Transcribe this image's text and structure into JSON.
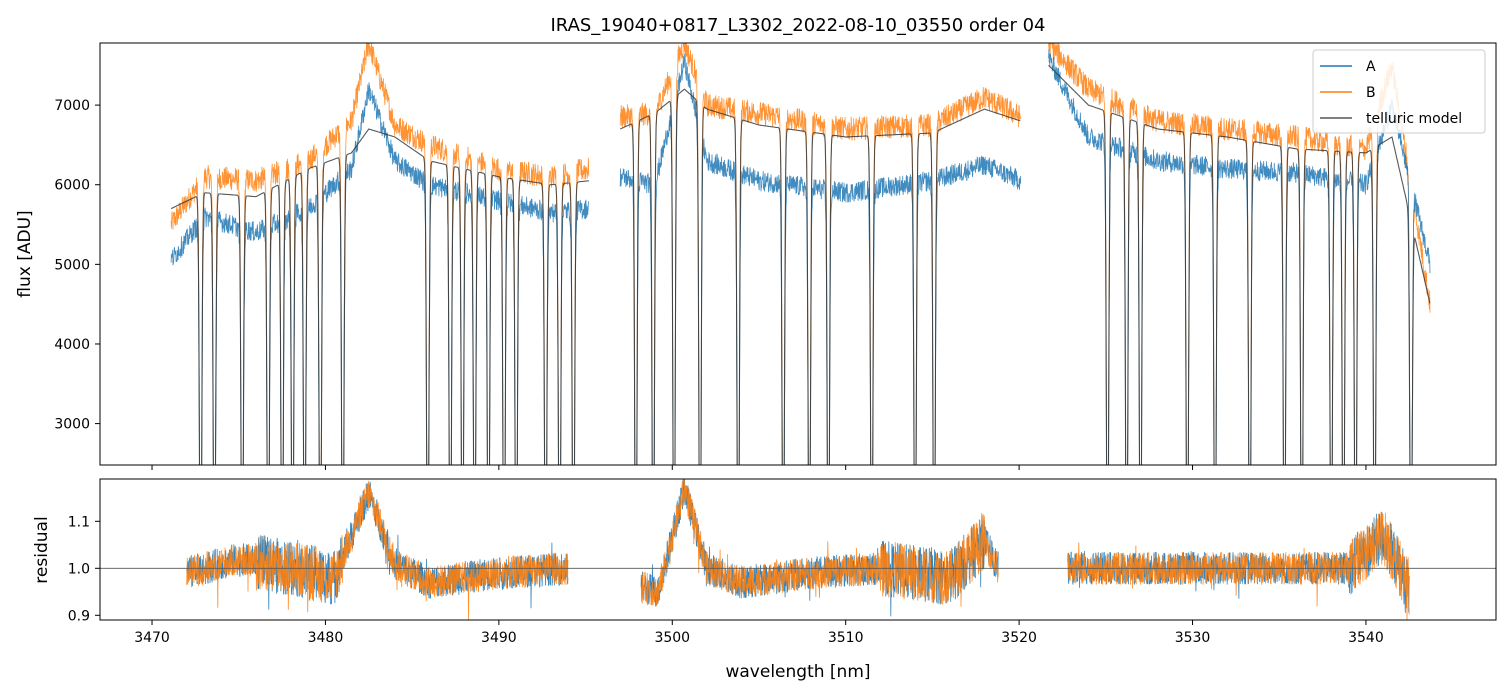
{
  "chart_data": {
    "type": "line",
    "title": "IRAS_19040+0817_L3302_2022-08-10_03550  order 04",
    "xlabel": "wavelength [nm]",
    "xlim": [
      3467,
      3547.5
    ],
    "xticks": [
      3470,
      3480,
      3490,
      3500,
      3510,
      3520,
      3530,
      3540
    ],
    "xtick_labels": [
      "3470",
      "3480",
      "3490",
      "3500",
      "3510",
      "3520",
      "3530",
      "3540"
    ],
    "colors": {
      "A": "#1f77b4",
      "B": "#ff7f0e",
      "model": "#3a3a3a",
      "ref": "#555555"
    },
    "panels": [
      {
        "name": "flux",
        "ylabel": "flux [ADU]",
        "ylim": [
          2480,
          7780
        ],
        "yticks": [
          3000,
          4000,
          5000,
          6000,
          7000
        ],
        "ytick_labels": [
          "3000",
          "4000",
          "5000",
          "6000",
          "7000"
        ],
        "legend": {
          "placement": "top-right",
          "entries": [
            "A",
            "B",
            "telluric model"
          ]
        },
        "segments": [
          [
            3471.1,
            3495.2
          ],
          [
            3497.0,
            3520.1
          ],
          [
            3521.7,
            3543.7
          ]
        ],
        "series": [
          {
            "name": "A",
            "key": "A",
            "x": [
              3471.1,
              3473,
              3476,
              3479,
              3481.5,
              3482.5,
              3484,
              3486,
              3490,
              3493,
              3495.2,
              3497.0,
              3499,
              3500.7,
              3502,
              3505,
              3510,
              3515,
              3518,
              3520.1,
              3521.7,
              3524,
              3528,
              3532,
              3536,
              3540,
              3541.5,
              3543.7
            ],
            "y": [
              5050,
              5600,
              5400,
              5700,
              6200,
              7200,
              6300,
              6000,
              5800,
              5650,
              5700,
              6100,
              6000,
              7550,
              6300,
              6050,
              5900,
              6050,
              6250,
              6050,
              7600,
              6600,
              6300,
              6200,
              6150,
              6000,
              7000,
              5000
            ]
          },
          {
            "name": "B",
            "key": "B",
            "x": [
              3471.1,
              3473,
              3476,
              3479,
              3481.5,
              3482.5,
              3484,
              3486,
              3490,
              3493,
              3495.2,
              3497.0,
              3499,
              3500.7,
              3502,
              3505,
              3510,
              3515,
              3518,
              3520.1,
              3521.7,
              3524,
              3528,
              3532,
              3536,
              3540,
              3541.5,
              3543.7
            ],
            "y": [
              5500,
              6100,
              6050,
              6300,
              6800,
              7780,
              6750,
              6500,
              6200,
              6100,
              6200,
              6850,
              6900,
              7780,
              7000,
              6900,
              6700,
              6750,
              7100,
              6850,
              7780,
              7200,
              6800,
              6700,
              6600,
              6450,
              7500,
              4500
            ]
          },
          {
            "name": "telluric model",
            "key": "model",
            "x": [
              3471.1,
              3473,
              3476,
              3479,
              3481.5,
              3482.5,
              3484,
              3486,
              3490,
              3493,
              3495.2,
              3497.0,
              3499,
              3500.7,
              3502,
              3505,
              3510,
              3515,
              3518,
              3520.1,
              3521.7,
              3524,
              3528,
              3532,
              3536,
              3540,
              3541.5,
              3543.7
            ],
            "y": [
              5700,
              5900,
              5850,
              6200,
              6400,
              6700,
              6600,
              6300,
              6100,
              6000,
              6050,
              6700,
              6900,
              7200,
              6950,
              6750,
              6600,
              6650,
              6950,
              6800,
              7500,
              7000,
              6700,
              6600,
              6450,
              6400,
              6600,
              4500
            ]
          }
        ],
        "absorption_lines": [
          3472.8,
          3473.6,
          3475.2,
          3476.7,
          3477.5,
          3478.1,
          3478.8,
          3479.7,
          3481.0,
          3485.9,
          3487.2,
          3487.9,
          3488.6,
          3489.4,
          3490.3,
          3491.0,
          3492.7,
          3493.5,
          3494.3,
          3497.9,
          3498.9,
          3500.1,
          3501.6,
          3503.8,
          3506.4,
          3507.9,
          3509.0,
          3511.5,
          3514.0,
          3515.1,
          3525.1,
          3526.2,
          3527.0,
          3529.7,
          3531.3,
          3533.3,
          3535.3,
          3536.3,
          3538.0,
          3538.7,
          3539.4,
          3540.5,
          3542.6
        ]
      },
      {
        "name": "residual",
        "ylabel": "residual",
        "ylim": [
          0.89,
          1.19
        ],
        "yticks": [
          0.9,
          1.0,
          1.1
        ],
        "ytick_labels": [
          "0.9",
          "1.0",
          "1.1"
        ],
        "reference_line": 1.0,
        "segments": [
          [
            3472.0,
            3494.0
          ],
          [
            3498.2,
            3518.8
          ],
          [
            3522.8,
            3542.5
          ]
        ],
        "baseline": {
          "x": [
            3472,
            3475,
            3478,
            3480.5,
            3482.5,
            3484,
            3486,
            3490,
            3494,
            3498.2,
            3499.2,
            3500.7,
            3502,
            3504,
            3508,
            3512,
            3516,
            3518,
            3518.8,
            3522.8,
            3526,
            3530,
            3535,
            3539,
            3541,
            3542.5
          ],
          "y": [
            0.99,
            1.02,
            1.0,
            0.98,
            1.16,
            1.01,
            0.97,
            0.99,
            1.0,
            0.96,
            0.95,
            1.17,
            1.0,
            0.97,
            0.99,
            1.0,
            0.98,
            1.06,
            1.0,
            1.0,
            1.0,
            1.0,
            1.0,
            1.0,
            1.07,
            0.96
          ]
        }
      }
    ]
  }
}
